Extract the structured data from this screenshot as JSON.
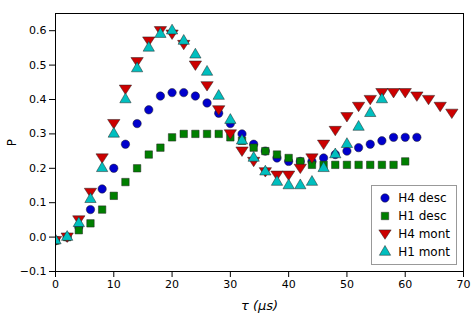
{
  "chart_data": {
    "type": "scatter",
    "x_label": "τ (μs)",
    "y_label": "P",
    "xlim": [
      0,
      70
    ],
    "xticks": [
      0,
      10,
      20,
      30,
      40,
      50,
      60,
      70
    ],
    "ylim": [
      -0.1,
      0.65
    ],
    "yticks": [
      {
        "value": -0.1,
        "label": "−0.1"
      },
      {
        "value": 0,
        "label": "0.0"
      },
      {
        "value": 0.1,
        "label": "0.1"
      },
      {
        "value": 0.2,
        "label": "0.2"
      },
      {
        "value": 0.3,
        "label": "0.3"
      },
      {
        "value": 0.4,
        "label": "0.4"
      },
      {
        "value": 0.5,
        "label": "0.5"
      },
      {
        "value": 0.6,
        "label": "0.6"
      }
    ],
    "grid": false,
    "legend": "lower right",
    "series": [
      {
        "name": "H4 desc",
        "color": "#0000cc",
        "marker": "circle",
        "x": [
          0,
          2,
          4,
          6,
          8,
          10,
          12,
          14,
          16,
          18,
          20,
          22,
          24,
          26,
          28,
          30,
          32,
          34,
          36,
          38,
          40,
          42,
          44,
          46,
          48,
          50,
          52,
          54,
          56,
          58,
          60,
          62
        ],
        "values": [
          -0.01,
          0.0,
          0.03,
          0.08,
          0.14,
          0.2,
          0.27,
          0.33,
          0.37,
          0.41,
          0.42,
          0.42,
          0.41,
          0.39,
          0.36,
          0.33,
          0.3,
          0.27,
          0.25,
          0.23,
          0.22,
          0.22,
          0.22,
          0.23,
          0.24,
          0.25,
          0.26,
          0.27,
          0.28,
          0.29,
          0.29,
          0.29
        ]
      },
      {
        "name": "H1 desc",
        "color": "#007f00",
        "marker": "square",
        "x": [
          0,
          2,
          4,
          6,
          8,
          10,
          12,
          14,
          16,
          18,
          20,
          22,
          24,
          26,
          28,
          30,
          32,
          34,
          36,
          38,
          40,
          42,
          44,
          46,
          48,
          50,
          52,
          54,
          56,
          58,
          60
        ],
        "values": [
          -0.01,
          0.0,
          0.02,
          0.04,
          0.08,
          0.12,
          0.16,
          0.2,
          0.24,
          0.26,
          0.29,
          0.3,
          0.3,
          0.3,
          0.3,
          0.29,
          0.28,
          0.26,
          0.25,
          0.24,
          0.23,
          0.22,
          0.21,
          0.21,
          0.21,
          0.21,
          0.21,
          0.21,
          0.21,
          0.21,
          0.22
        ]
      },
      {
        "name": "H4 mont",
        "color": "#cc0000",
        "marker": "triangle_down",
        "x": [
          0,
          2,
          4,
          6,
          8,
          10,
          12,
          14,
          16,
          18,
          20,
          22,
          24,
          26,
          28,
          30,
          32,
          34,
          36,
          38,
          40,
          42,
          44,
          46,
          48,
          50,
          52,
          54,
          56,
          58,
          60,
          62,
          64,
          66,
          68
        ],
        "values": [
          -0.01,
          0.0,
          0.05,
          0.13,
          0.23,
          0.33,
          0.43,
          0.51,
          0.57,
          0.6,
          0.59,
          0.56,
          0.5,
          0.44,
          0.37,
          0.3,
          0.25,
          0.22,
          0.19,
          0.18,
          0.18,
          0.2,
          0.23,
          0.27,
          0.31,
          0.35,
          0.38,
          0.4,
          0.42,
          0.42,
          0.42,
          0.41,
          0.4,
          0.38,
          0.36
        ]
      },
      {
        "name": "H1 mont",
        "color": "#00bfbf",
        "marker": "triangle_up",
        "x": [
          0,
          2,
          4,
          6,
          8,
          10,
          12,
          14,
          16,
          18,
          20,
          22,
          24,
          26,
          28,
          30,
          32,
          34,
          36,
          38,
          40,
          42,
          44,
          46,
          48,
          50,
          52,
          54,
          56
        ],
        "values": [
          -0.01,
          0.0,
          0.04,
          0.11,
          0.2,
          0.3,
          0.4,
          0.49,
          0.55,
          0.59,
          0.6,
          0.57,
          0.53,
          0.48,
          0.41,
          0.34,
          0.28,
          0.23,
          0.19,
          0.16,
          0.15,
          0.15,
          0.16,
          0.2,
          0.24,
          0.27,
          0.32,
          0.36,
          0.4
        ]
      }
    ]
  }
}
